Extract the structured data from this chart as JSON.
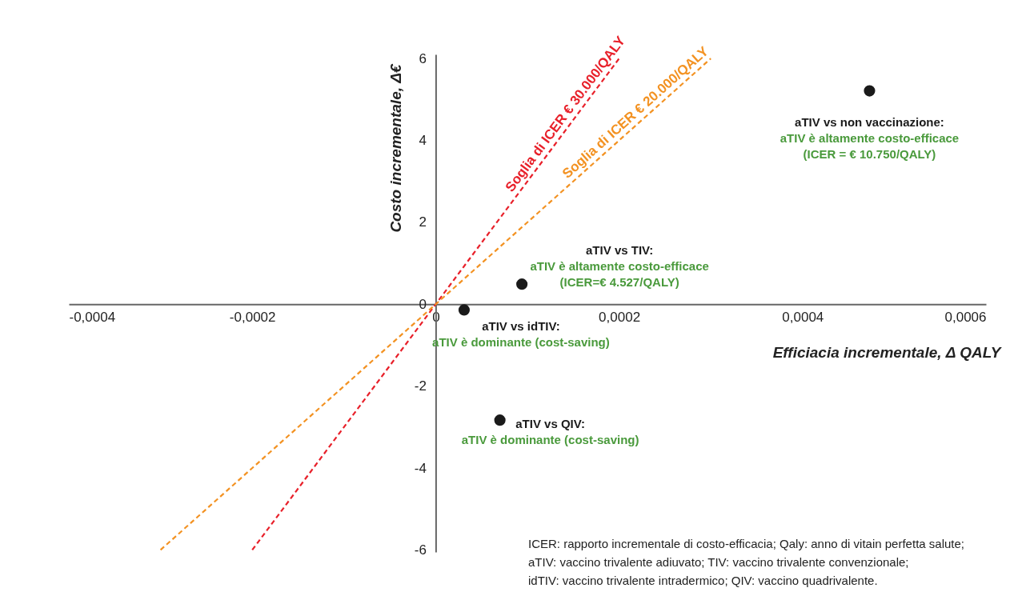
{
  "chart_data": {
    "type": "scatter",
    "xlabel": "Efficiacia incrementale, Δ QALY",
    "ylabel": "Costo incrementale, Δ€",
    "xlim": [
      -0.0004,
      0.0006
    ],
    "ylim": [
      -6.05,
      6.1
    ],
    "xticks": [
      {
        "value": -0.0004,
        "label": "-0,0004"
      },
      {
        "value": -0.0002,
        "label": "-0,0002"
      },
      0,
      {
        "value": 0.0002,
        "label": "0,0002"
      },
      {
        "value": 0.0004,
        "label": "0,0004"
      },
      {
        "value": 0.0006,
        "label": "0,0006"
      }
    ],
    "yticks": [
      -6,
      -4,
      -2,
      0,
      2,
      4,
      6
    ],
    "series": [
      {
        "type": "line",
        "name": "Soglia di ICER € 30.000/QALY",
        "color": "#e8202a",
        "marker": "none",
        "x": [
          -0.0002,
          0.0002
        ],
        "values": [
          -6,
          6
        ]
      },
      {
        "type": "line",
        "name": "Soglia di ICER € 20.000/QALY",
        "color": "#f39222",
        "marker": "none",
        "x": [
          -0.0003,
          0.0003
        ],
        "values": [
          -6,
          6
        ]
      },
      {
        "color": "#1a1a1a",
        "x": [
          0.000473,
          9.4e-05,
          3.1e-05,
          7e-05
        ],
        "values": [
          5.21,
          0.49,
          -0.14,
          -2.83
        ]
      }
    ],
    "line_style": "dashed",
    "marker": "circle",
    "grid": false,
    "annotations": [
      {
        "text": "aTIV vs non vaccinazione:\naTIV è altamente costo-efficace\n(ICER = € 10.750/QALY)",
        "x": 0.000473,
        "y": 5.21
      },
      {
        "text": "aTIV vs TIV:\naTIV è altamente costo-efficace\n(ICER=€ 4.527/QALY)",
        "x": 9.4e-05,
        "y": 0.49
      },
      {
        "text": "aTIV vs idTIV:\naTIV è dominante (cost-saving)",
        "x": 3.1e-05,
        "y": -0.14
      },
      {
        "text": "aTIV vs QIV:\naTIV è dominante (cost-saving)",
        "x": 7e-05,
        "y": -2.83
      },
      "ICER: rapporto incrementale di costo-efficacia; Qaly: anno di vitain perfetta salute;\naTIV: vaccino trivalente adiuvato; TIV: vaccino trivalente convenzionale;\nidTIV: vaccino trivalente intradermico; QIV: vaccino quadrivalente."
    ]
  }
}
